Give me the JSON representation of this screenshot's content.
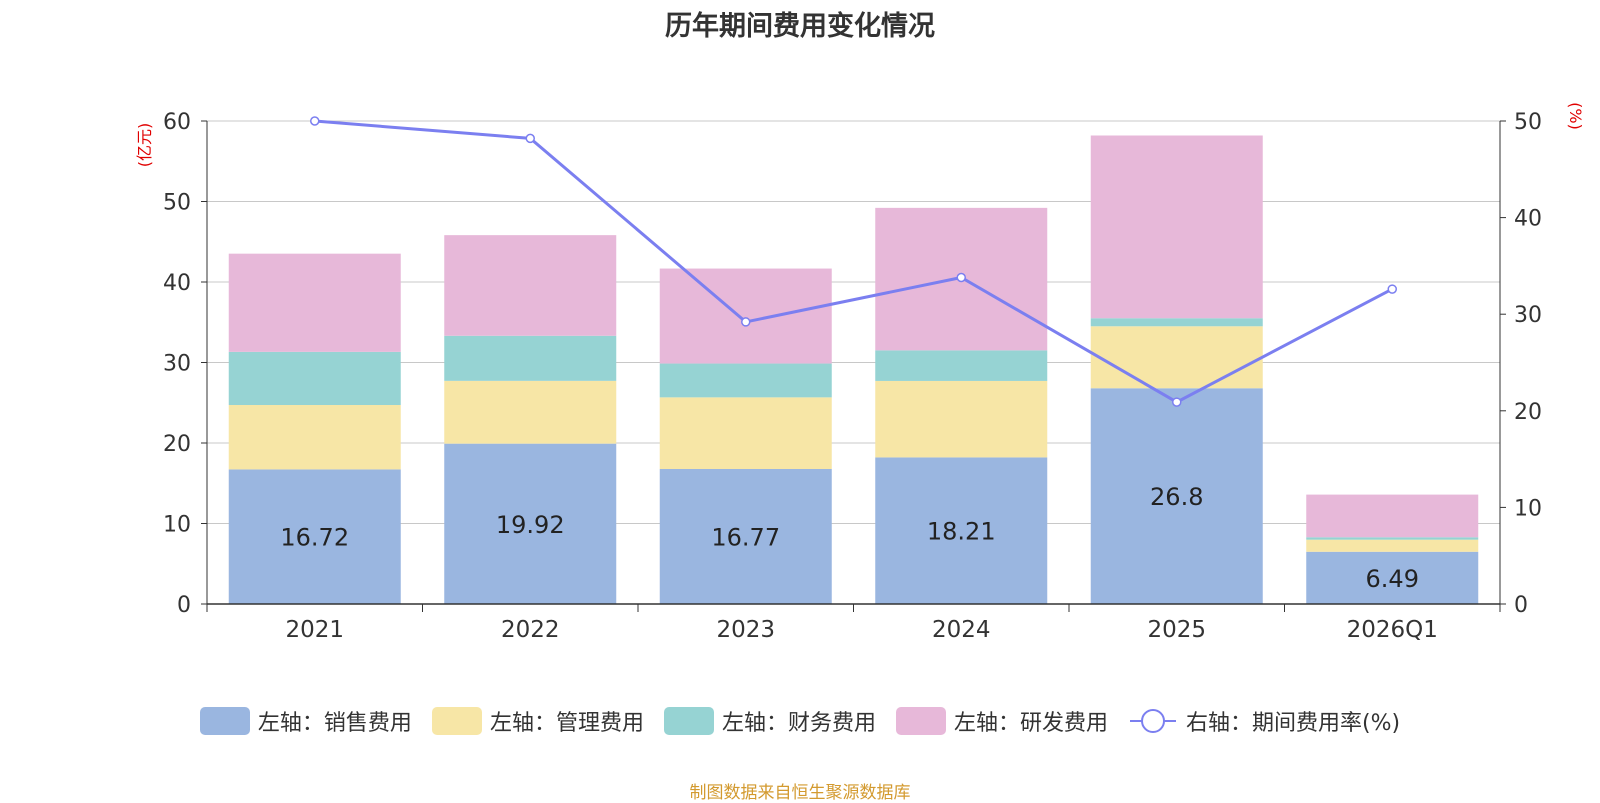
{
  "chart_data": {
    "type": "bar",
    "stacked": true,
    "title": "历年期间费用变化情况",
    "categories": [
      "2021",
      "2022",
      "2023",
      "2024",
      "2025",
      "2026Q1"
    ],
    "series": [
      {
        "name": "左轴：销售费用",
        "axis": "left",
        "color": "#9ab6e0",
        "values": [
          16.72,
          19.92,
          16.77,
          18.21,
          26.8,
          6.49
        ],
        "labels": [
          "16.72",
          "19.92",
          "16.77",
          "18.21",
          "26.8",
          "6.49"
        ]
      },
      {
        "name": "左轴：管理费用",
        "axis": "left",
        "color": "#f7e6a6",
        "values": [
          8.0,
          7.8,
          8.9,
          9.5,
          7.7,
          1.5
        ]
      },
      {
        "name": "左轴：财务费用",
        "axis": "left",
        "color": "#96d3d3",
        "values": [
          6.6,
          5.6,
          4.2,
          3.8,
          1.0,
          0.3
        ]
      },
      {
        "name": "左轴：研发费用",
        "axis": "left",
        "color": "#e7b8d9",
        "values": [
          12.2,
          12.5,
          11.8,
          17.7,
          22.7,
          5.3
        ]
      },
      {
        "name": "右轴：期间费用率(%)",
        "axis": "right",
        "type": "line",
        "color": "#7b7ff0",
        "values": [
          50.0,
          48.2,
          29.2,
          33.8,
          20.9,
          32.6
        ]
      }
    ],
    "y_left": {
      "label": "(亿元)",
      "ylim": [
        0,
        60
      ],
      "ticks": [
        "0",
        "10",
        "20",
        "30",
        "40",
        "50",
        "60"
      ]
    },
    "y_right": {
      "label": "(%)",
      "ylim": [
        0,
        50
      ],
      "ticks": [
        "0",
        "10",
        "20",
        "30",
        "40",
        "50"
      ]
    },
    "grid": true,
    "legend_position": "bottom"
  },
  "source": "制图数据来自恒生聚源数据库"
}
